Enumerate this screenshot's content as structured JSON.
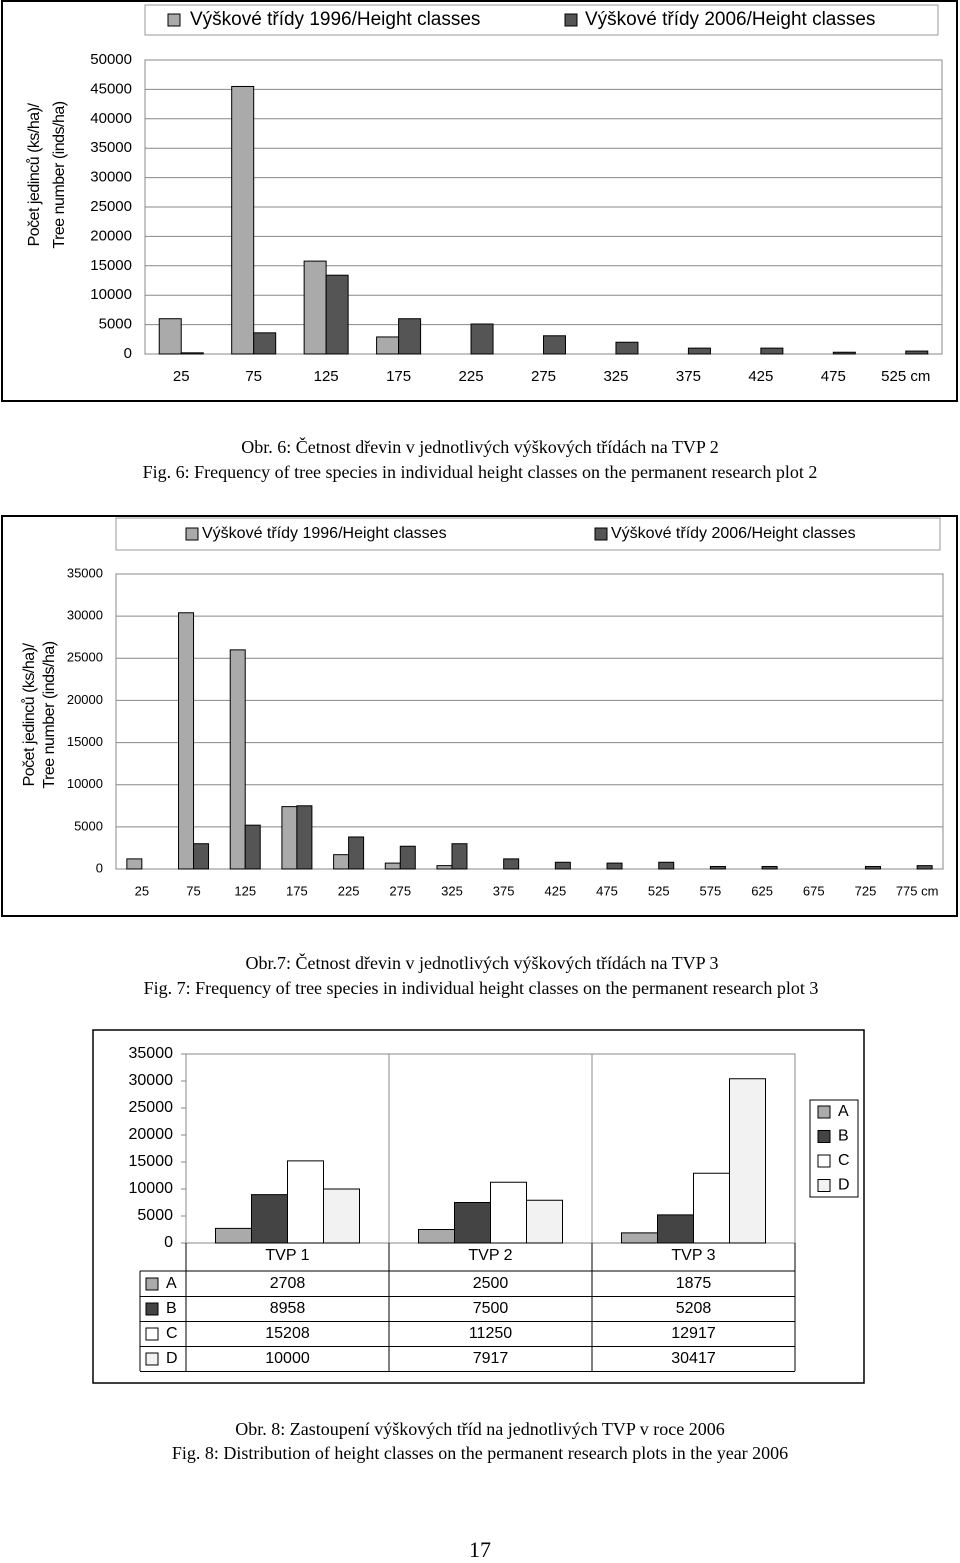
{
  "chart_data": [
    {
      "type": "bar",
      "ylabel": [
        "Počet jedinců (ks/ha)/",
        "Tree number (inds/ha)"
      ],
      "categories": [
        "25",
        "75",
        "125",
        "175",
        "225",
        "275",
        "325",
        "375",
        "425",
        "475",
        "525 cm"
      ],
      "series": [
        {
          "name": "Výškové třídy 1996/Height classes",
          "color": "#aaaaaa",
          "values": [
            6000,
            45500,
            15800,
            2900,
            0,
            0,
            0,
            0,
            0,
            0,
            0
          ]
        },
        {
          "name": "Výškové třídy 2006/Height classes",
          "color": "#555555",
          "values": [
            200,
            3600,
            13400,
            6000,
            5100,
            3100,
            2000,
            1000,
            1000,
            300,
            500
          ]
        }
      ],
      "ylim": [
        0,
        50000
      ],
      "yticks": [
        0,
        5000,
        10000,
        15000,
        20000,
        25000,
        30000,
        35000,
        40000,
        45000,
        50000
      ],
      "grid": true,
      "legend": "top"
    },
    {
      "type": "bar",
      "ylabel": [
        "Počet jedinců (ks/ha)/",
        "Tree number (inds/ha)"
      ],
      "categories": [
        "25",
        "75",
        "125",
        "175",
        "225",
        "275",
        "325",
        "375",
        "425",
        "475",
        "525",
        "575",
        "625",
        "675",
        "725",
        "775 cm"
      ],
      "series": [
        {
          "name": "Výškové třídy 1996/Height classes",
          "color": "#aaaaaa",
          "values": [
            1200,
            30400,
            26000,
            7400,
            1700,
            700,
            400,
            0,
            0,
            0,
            0,
            0,
            0,
            0,
            0,
            0
          ]
        },
        {
          "name": "Výškové třídy 2006/Height classes",
          "color": "#555555",
          "values": [
            0,
            3000,
            5200,
            7500,
            3800,
            2700,
            3000,
            1200,
            800,
            700,
            800,
            300,
            300,
            0,
            300,
            400
          ]
        }
      ],
      "ylim": [
        0,
        35000
      ],
      "yticks": [
        0,
        5000,
        10000,
        15000,
        20000,
        25000,
        30000,
        35000
      ],
      "grid": true,
      "legend": "top"
    },
    {
      "type": "bar",
      "categories": [
        "TVP 1",
        "TVP 2",
        "TVP 3"
      ],
      "series": [
        {
          "name": "A",
          "color": "#aaaaaa",
          "values": [
            2708,
            2500,
            1875
          ]
        },
        {
          "name": "B",
          "color": "#444444",
          "values": [
            8958,
            7500,
            5208
          ]
        },
        {
          "name": "C",
          "color": "#ffffff",
          "values": [
            15208,
            11250,
            12917
          ]
        },
        {
          "name": "D",
          "color": "#f2f2f2",
          "values": [
            10000,
            7917,
            30417
          ]
        }
      ],
      "ylim": [
        0,
        35000
      ],
      "yticks": [
        0,
        5000,
        10000,
        15000,
        20000,
        25000,
        30000,
        35000
      ],
      "grid": false,
      "legend": "right",
      "data_table": true
    }
  ],
  "captions": [
    {
      "cz": "Obr. 6: Četnost dřevin v jednotlivých výškových třídách na TVP 2",
      "en": "Fig. 6: Frequency of tree species in individual height classes on the permanent research plot 2"
    },
    {
      "cz": "Obr.7: Četnost dřevin v jednotlivých výškových třídách na TVP 3",
      "en": "Fig. 7: Frequency of tree species in individual height classes on the permanent research plot 3"
    },
    {
      "cz": "Obr. 8: Zastoupení výškových tříd na jednotlivých TVP v roce 2006",
      "en": "Fig. 8: Distribution of height classes on the permanent research plots in the year 2006"
    }
  ],
  "page_number": 17
}
